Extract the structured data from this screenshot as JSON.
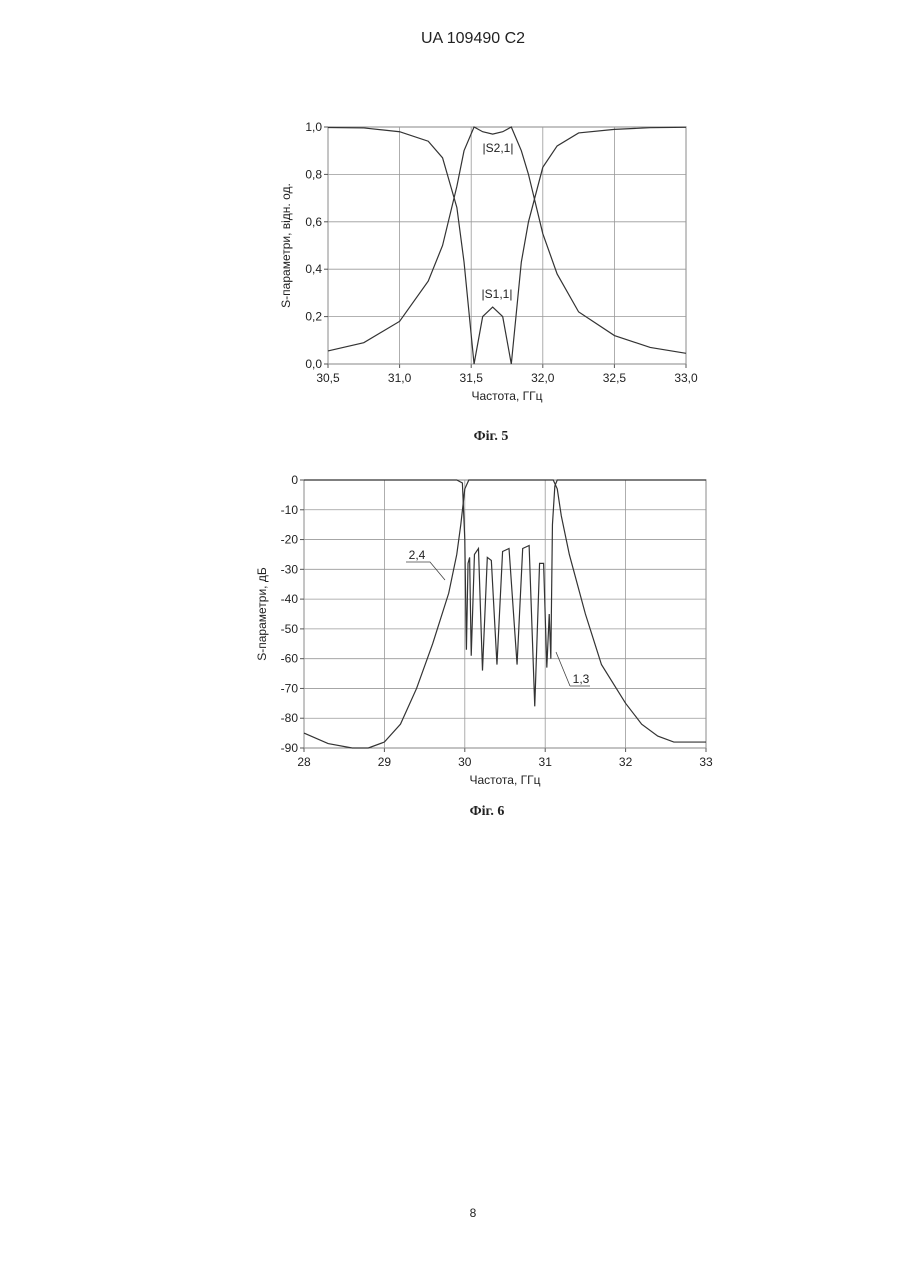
{
  "header": "UA   109490   C2",
  "page_number": "8",
  "chart_data": [
    {
      "type": "line",
      "caption": "Фіг. 5",
      "x_label": "Частота, ГГц",
      "y_label": "S-параметри, відн. од.",
      "xlim": [
        30.5,
        33.0
      ],
      "xticks": [
        {
          "value": 30.5,
          "label": "30,5"
        },
        {
          "value": 31.0,
          "label": "31,0"
        },
        {
          "value": 31.5,
          "label": "31,5"
        },
        {
          "value": 32.0,
          "label": "32,0"
        },
        {
          "value": 32.5,
          "label": "32,5"
        },
        {
          "value": 33.0,
          "label": "33,0"
        }
      ],
      "ylim": [
        0,
        1.0
      ],
      "yticks": [
        {
          "value": 0,
          "label": "0,0"
        },
        {
          "value": 0.2,
          "label": "0,2"
        },
        {
          "value": 0.4,
          "label": "0,4"
        },
        {
          "value": 0.6,
          "label": "0,6"
        },
        {
          "value": 0.8,
          "label": "0,8"
        },
        {
          "value": 1.0,
          "label": "1,0"
        }
      ],
      "grid": true,
      "x": [
        30.5,
        30.75,
        31.0,
        31.2,
        31.3,
        31.4,
        31.45,
        31.52,
        31.58,
        31.65,
        31.72,
        31.78,
        31.85,
        31.9,
        32.0,
        32.1,
        32.25,
        32.5,
        32.75,
        33.0
      ],
      "series": [
        {
          "name": "|S2,1|",
          "color": "#333333",
          "values": [
            0.055,
            0.09,
            0.18,
            0.35,
            0.5,
            0.75,
            0.9,
            1.0,
            0.98,
            0.97,
            0.98,
            1.0,
            0.9,
            0.8,
            0.55,
            0.38,
            0.22,
            0.12,
            0.07,
            0.045
          ]
        },
        {
          "name": "|S1,1|",
          "color": "#333333",
          "values": [
            0.998,
            0.996,
            0.98,
            0.94,
            0.87,
            0.66,
            0.43,
            0,
            0.2,
            0.24,
            0.2,
            0,
            0.43,
            0.6,
            0.83,
            0.92,
            0.975,
            0.99,
            0.997,
            0.999
          ]
        }
      ]
    },
    {
      "type": "line",
      "caption": "Фіг. 6",
      "x_label": "Частота, ГГц",
      "y_label": "S-параметри, дБ",
      "xlim": [
        28,
        33
      ],
      "xticks": [
        28,
        29,
        30,
        31,
        32,
        33
      ],
      "ylim": [
        -90,
        0
      ],
      "yticks": [
        -90,
        -80,
        -70,
        -60,
        -50,
        -40,
        -30,
        -20,
        -10,
        0
      ],
      "grid": true,
      "series": [
        {
          "name": "2,4",
          "color": "#333333",
          "x": [
            28,
            28.3,
            28.6,
            28.8,
            29,
            29.2,
            29.4,
            29.6,
            29.8,
            29.9,
            29.95,
            30.0,
            30.05,
            30.5,
            31.1,
            31.15,
            31.2,
            31.3,
            31.5,
            31.7,
            32,
            32.2,
            32.4,
            32.6,
            33
          ],
          "values": [
            -85,
            -88.5,
            -90,
            -90,
            -88,
            -82,
            -70,
            -55,
            -38,
            -25,
            -15,
            -3,
            0,
            0,
            0,
            -3,
            -12,
            -25,
            -45,
            -62,
            -75,
            -82,
            -86,
            -88,
            -88
          ]
        },
        {
          "name": "1,3",
          "color": "#333333",
          "x": [
            28,
            29.9,
            29.97,
            30.0,
            30.02,
            30.04,
            30.06,
            30.08,
            30.12,
            30.17,
            30.22,
            30.28,
            30.33,
            30.4,
            30.47,
            30.55,
            30.65,
            30.72,
            30.8,
            30.87,
            30.93,
            30.98,
            31.02,
            31.05,
            31.07,
            31.09,
            31.12,
            31.15,
            33
          ],
          "values": [
            0,
            0,
            -1,
            -20,
            -57,
            -28,
            -26,
            -59,
            -25,
            -23,
            -64,
            -26,
            -27,
            -62,
            -24,
            -23,
            -62,
            -23,
            -22,
            -76,
            -28,
            -28,
            -63,
            -45,
            -60,
            -15,
            -2,
            0,
            0
          ]
        }
      ]
    }
  ]
}
